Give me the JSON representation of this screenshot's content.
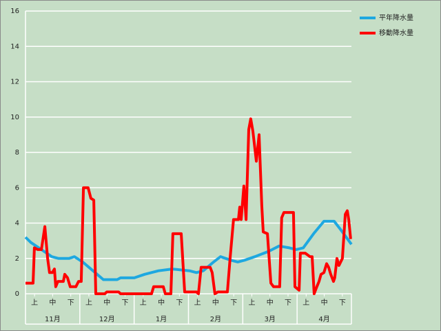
{
  "chart_data": {
    "type": "line",
    "xlim": [
      0,
      18
    ],
    "xticks": [
      {
        "value": 0.5,
        "label": "上"
      },
      {
        "value": 1.5,
        "label": "中"
      },
      {
        "value": 2.5,
        "label": "下"
      },
      {
        "value": 3.5,
        "label": "上"
      },
      {
        "value": 4.5,
        "label": "中"
      },
      {
        "value": 5.5,
        "label": "下"
      },
      {
        "value": 6.5,
        "label": "上"
      },
      {
        "value": 7.5,
        "label": "中"
      },
      {
        "value": 8.5,
        "label": "下"
      },
      {
        "value": 9.5,
        "label": "上"
      },
      {
        "value": 10.5,
        "label": "中"
      },
      {
        "value": 11.5,
        "label": "下"
      },
      {
        "value": 12.5,
        "label": "上"
      },
      {
        "value": 13.5,
        "label": "中"
      },
      {
        "value": 14.5,
        "label": "下"
      },
      {
        "value": 15.5,
        "label": "上"
      },
      {
        "value": 16.5,
        "label": "中"
      },
      {
        "value": 17.5,
        "label": "下"
      }
    ],
    "months": [
      "11月",
      "12月",
      "1月",
      "2月",
      "3月",
      "4月"
    ],
    "ylim": [
      0,
      16
    ],
    "yticks": [
      0,
      2,
      4,
      6,
      8,
      10,
      12,
      14,
      16
    ],
    "grid": true,
    "legend": "right",
    "series": [
      {
        "name": "平年降水量",
        "color": "#1ea8e0",
        "x": [
          0,
          0.3,
          0.88,
          1.45,
          1.83,
          2.4,
          2.7,
          3.16,
          3.73,
          4.3,
          5.06,
          5.25,
          6.01,
          6.58,
          7.34,
          8.1,
          9.06,
          9.44,
          9.82,
          10.39,
          10.77,
          11.34,
          11.72,
          12.1,
          12.67,
          13.43,
          14.0,
          14.57,
          14.95,
          15.34,
          15.91,
          16.48,
          17.05,
          17.43,
          18
        ],
        "values": [
          3.2,
          2.9,
          2.5,
          2.1,
          2.0,
          2.0,
          2.1,
          1.8,
          1.3,
          0.8,
          0.8,
          0.9,
          0.9,
          1.1,
          1.3,
          1.4,
          1.3,
          1.2,
          1.3,
          1.8,
          2.1,
          1.9,
          1.8,
          1.9,
          2.1,
          2.4,
          2.7,
          2.6,
          2.5,
          2.6,
          3.4,
          4.1,
          4.1,
          3.6,
          2.8
        ]
      },
      {
        "name": "移動降水量",
        "color": "#ff0000",
        "x": [
          0,
          0.42,
          0.49,
          0.68,
          0.88,
          1.07,
          1.22,
          1.33,
          1.48,
          1.6,
          1.67,
          1.79,
          2.09,
          2.17,
          2.32,
          2.47,
          2.78,
          2.93,
          3.08,
          3.2,
          3.46,
          3.61,
          3.77,
          3.88,
          4.38,
          4.49,
          5.14,
          5.25,
          6.96,
          7.08,
          7.61,
          7.72,
          8.03,
          8.14,
          8.6,
          8.79,
          9.44,
          9.55,
          9.7,
          10.2,
          10.31,
          10.46,
          10.62,
          11.15,
          11.3,
          11.49,
          11.76,
          11.83,
          11.91,
          12.06,
          12.18,
          12.33,
          12.44,
          12.56,
          12.75,
          12.9,
          13.05,
          13.13,
          13.36,
          13.55,
          13.7,
          14.04,
          14.15,
          14.27,
          14.8,
          14.88,
          15.11,
          15.18,
          15.45,
          15.71,
          15.83,
          15.94,
          16.09,
          16.21,
          16.32,
          16.48,
          16.63,
          16.74,
          16.86,
          17.01,
          17.08,
          17.2,
          17.31,
          17.5,
          17.66,
          17.77,
          17.85,
          17.96
        ],
        "values": [
          0.6,
          0.6,
          2.6,
          2.5,
          2.5,
          3.8,
          2.0,
          1.2,
          1.2,
          1.4,
          0.4,
          0.7,
          0.7,
          1.1,
          0.9,
          0.4,
          0.4,
          0.7,
          0.7,
          6.0,
          6.0,
          5.4,
          5.3,
          0,
          0,
          0.1,
          0.1,
          0,
          0,
          0.4,
          0.4,
          0,
          0,
          3.4,
          3.4,
          0.1,
          0.1,
          0,
          1.5,
          1.5,
          1.2,
          0,
          0.1,
          0.1,
          2.0,
          4.2,
          4.2,
          4.9,
          4.2,
          6.1,
          4.2,
          9.3,
          9.9,
          9.2,
          7.5,
          9.0,
          5.0,
          3.5,
          3.4,
          0.6,
          0.4,
          0.4,
          4.3,
          4.6,
          4.6,
          0.4,
          0.2,
          2.3,
          2.3,
          2.1,
          2.1,
          0,
          0.4,
          0.7,
          1.1,
          1.2,
          1.7,
          1.5,
          1.1,
          0.7,
          0.9,
          2.0,
          1.6,
          2.0,
          4.5,
          4.7,
          4.2,
          3.1
        ]
      }
    ]
  }
}
